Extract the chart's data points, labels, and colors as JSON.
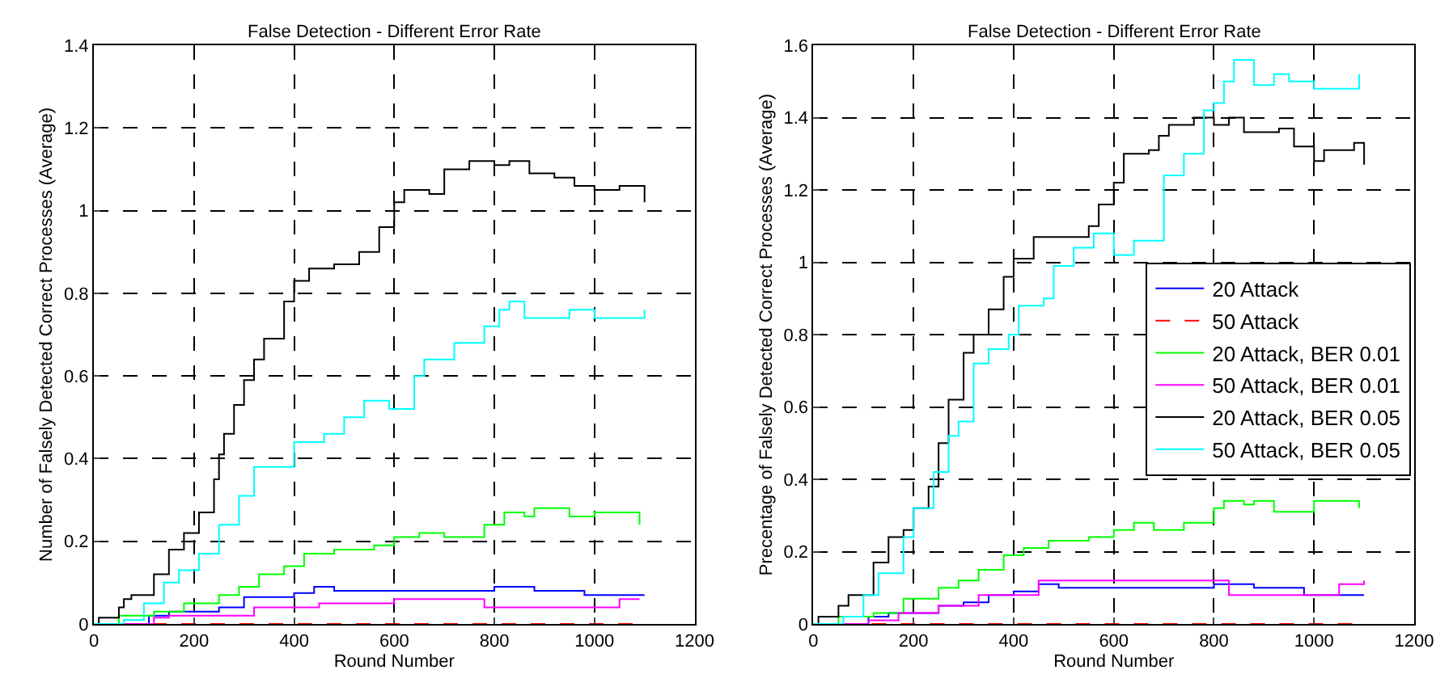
{
  "chart_data": [
    {
      "type": "step",
      "title": "False Detection - Different Error Rate",
      "xlabel": "Round Number",
      "ylabel": "Number of Falsely Detected Correct Processes (Average)",
      "xlim": [
        0,
        1200
      ],
      "xticks": [
        0,
        200,
        400,
        600,
        800,
        1000,
        1200
      ],
      "ylim": [
        0,
        1.4
      ],
      "yticks": [
        0,
        0.2,
        0.4,
        0.6,
        0.8,
        1,
        1.2,
        1.4
      ],
      "grid": true,
      "legend": false,
      "marker": "none",
      "series": [
        {
          "color": "#0000ff",
          "line_style": "solid",
          "x": [
            0,
            110,
            150,
            250,
            300,
            400,
            440,
            480,
            800,
            880,
            980,
            1100
          ],
          "values": [
            0,
            0.02,
            0.03,
            0.04,
            0.065,
            0.075,
            0.09,
            0.08,
            0.09,
            0.08,
            0.07,
            0.07
          ]
        },
        {
          "color": "#ff0000",
          "line_style": "dashed",
          "x": [
            0,
            1100
          ],
          "values": [
            0,
            0
          ]
        },
        {
          "color": "#00ff00",
          "line_style": "solid",
          "x": [
            0,
            50,
            120,
            180,
            250,
            290,
            330,
            380,
            420,
            480,
            560,
            600,
            650,
            700,
            780,
            820,
            860,
            880,
            950,
            1000,
            1090
          ],
          "values": [
            0,
            0.02,
            0.03,
            0.05,
            0.07,
            0.09,
            0.12,
            0.14,
            0.17,
            0.18,
            0.19,
            0.21,
            0.22,
            0.21,
            0.24,
            0.27,
            0.26,
            0.28,
            0.26,
            0.27,
            0.24
          ]
        },
        {
          "color": "#ff00ff",
          "line_style": "solid",
          "x": [
            0,
            120,
            150,
            280,
            320,
            450,
            600,
            780,
            980,
            1050,
            1090
          ],
          "values": [
            0,
            0.015,
            0.02,
            0.02,
            0.04,
            0.05,
            0.06,
            0.04,
            0.04,
            0.06,
            0.06
          ]
        },
        {
          "color": "#000000",
          "line_style": "solid",
          "x": [
            0,
            10,
            50,
            60,
            75,
            120,
            150,
            180,
            210,
            240,
            250,
            260,
            280,
            300,
            320,
            340,
            380,
            400,
            430,
            480,
            530,
            570,
            600,
            620,
            670,
            700,
            750,
            800,
            830,
            870,
            920,
            960,
            1000,
            1050,
            1100
          ],
          "values": [
            0,
            0.015,
            0.04,
            0.06,
            0.07,
            0.12,
            0.18,
            0.22,
            0.27,
            0.35,
            0.41,
            0.46,
            0.53,
            0.59,
            0.64,
            0.69,
            0.78,
            0.83,
            0.86,
            0.87,
            0.9,
            0.96,
            1.02,
            1.05,
            1.04,
            1.1,
            1.12,
            1.11,
            1.12,
            1.09,
            1.08,
            1.06,
            1.05,
            1.06,
            1.02
          ]
        },
        {
          "color": "#00ffff",
          "line_style": "solid",
          "x": [
            0,
            60,
            100,
            140,
            170,
            210,
            250,
            290,
            320,
            390,
            400,
            460,
            500,
            540,
            590,
            640,
            660,
            720,
            780,
            810,
            830,
            860,
            950,
            1000,
            1100
          ],
          "values": [
            0,
            0.01,
            0.05,
            0.1,
            0.13,
            0.17,
            0.24,
            0.31,
            0.38,
            0.38,
            0.44,
            0.46,
            0.5,
            0.54,
            0.52,
            0.6,
            0.64,
            0.68,
            0.72,
            0.76,
            0.78,
            0.74,
            0.76,
            0.74,
            0.76
          ]
        }
      ]
    },
    {
      "type": "step",
      "title": "False Detection - Different Error Rate",
      "xlabel": "Round Number",
      "ylabel": "Precentage of Falsely Detected Correct Processes (Average)",
      "xlim": [
        0,
        1200
      ],
      "xticks": [
        0,
        200,
        400,
        600,
        800,
        1000,
        1200
      ],
      "ylim": [
        0,
        1.6
      ],
      "yticks": [
        0,
        0.2,
        0.4,
        0.6,
        0.8,
        1,
        1.2,
        1.4,
        1.6
      ],
      "grid": true,
      "legend": "right",
      "marker": "none",
      "series": [
        {
          "name": "20 Attack",
          "color": "#0000ff",
          "line_style": "solid",
          "x": [
            0,
            110,
            150,
            250,
            300,
            350,
            400,
            450,
            490,
            800,
            880,
            980,
            1100
          ],
          "values": [
            0,
            0.02,
            0.03,
            0.05,
            0.06,
            0.08,
            0.09,
            0.11,
            0.1,
            0.11,
            0.1,
            0.08,
            0.08
          ]
        },
        {
          "name": "50 Attack",
          "color": "#ff0000",
          "line_style": "dashed",
          "x": [
            0,
            1100
          ],
          "values": [
            0,
            0
          ]
        },
        {
          "name": "20 Attack, BER 0.01",
          "color": "#00ff00",
          "line_style": "solid",
          "x": [
            0,
            50,
            120,
            180,
            250,
            290,
            330,
            380,
            420,
            470,
            550,
            600,
            640,
            680,
            740,
            800,
            820,
            860,
            880,
            920,
            1000,
            1090
          ],
          "values": [
            0,
            0.02,
            0.03,
            0.07,
            0.1,
            0.12,
            0.15,
            0.19,
            0.21,
            0.23,
            0.24,
            0.26,
            0.28,
            0.26,
            0.28,
            0.32,
            0.34,
            0.33,
            0.34,
            0.31,
            0.34,
            0.32
          ]
        },
        {
          "name": "50 Attack, BER 0.01",
          "color": "#ff00ff",
          "line_style": "solid",
          "x": [
            0,
            110,
            170,
            250,
            330,
            400,
            450,
            800,
            830,
            980,
            1050,
            1100
          ],
          "values": [
            0,
            0.01,
            0.03,
            0.05,
            0.08,
            0.08,
            0.12,
            0.12,
            0.08,
            0.08,
            0.11,
            0.12
          ]
        },
        {
          "name": "20 Attack, BER 0.05",
          "color": "#000000",
          "line_style": "solid",
          "x": [
            0,
            10,
            50,
            70,
            100,
            120,
            150,
            180,
            200,
            230,
            250,
            270,
            300,
            320,
            350,
            380,
            400,
            440,
            500,
            550,
            570,
            600,
            620,
            670,
            690,
            710,
            760,
            800,
            830,
            860,
            900,
            930,
            960,
            1000,
            1020,
            1080,
            1100
          ],
          "values": [
            0,
            0.02,
            0.05,
            0.08,
            0.08,
            0.17,
            0.24,
            0.26,
            0.32,
            0.38,
            0.5,
            0.62,
            0.75,
            0.8,
            0.87,
            0.96,
            1.01,
            1.07,
            1.07,
            1.1,
            1.16,
            1.22,
            1.3,
            1.31,
            1.35,
            1.38,
            1.4,
            1.38,
            1.4,
            1.36,
            1.36,
            1.37,
            1.32,
            1.28,
            1.31,
            1.33,
            1.27
          ]
        },
        {
          "name": "50 Attack, BER 0.05",
          "color": "#00ffff",
          "line_style": "solid",
          "x": [
            0,
            60,
            100,
            130,
            180,
            200,
            240,
            270,
            290,
            320,
            350,
            390,
            410,
            460,
            480,
            520,
            560,
            600,
            640,
            700,
            740,
            780,
            800,
            820,
            840,
            880,
            920,
            950,
            1000,
            1090
          ],
          "values": [
            0,
            0.02,
            0.08,
            0.14,
            0.24,
            0.32,
            0.42,
            0.52,
            0.56,
            0.72,
            0.76,
            0.8,
            0.88,
            0.9,
            0.99,
            1.04,
            1.08,
            1.02,
            1.06,
            1.24,
            1.3,
            1.42,
            1.44,
            1.5,
            1.56,
            1.49,
            1.52,
            1.5,
            1.48,
            1.52
          ]
        }
      ]
    }
  ]
}
